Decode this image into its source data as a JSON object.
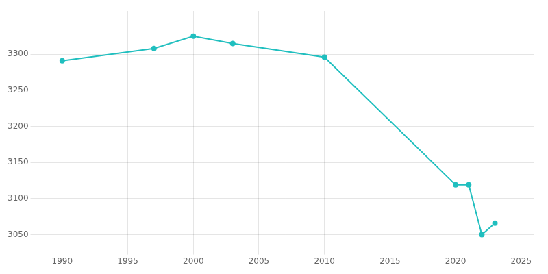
{
  "chart_data": {
    "type": "line",
    "x": [
      1990,
      1997,
      2000,
      2003,
      2010,
      2020,
      2021,
      2022,
      2023
    ],
    "values": [
      3291,
      3308,
      3325,
      3315,
      3296,
      3119,
      3119,
      3050,
      3066
    ],
    "color": "#20BFBF",
    "marker": "circle",
    "xlim": [
      1988,
      2026
    ],
    "ylim": [
      3030,
      3360
    ],
    "xticks": [
      1990,
      1995,
      2000,
      2005,
      2010,
      2015,
      2020,
      2025
    ],
    "yticks": [
      3050,
      3100,
      3150,
      3200,
      3250,
      3300
    ],
    "grid": true
  }
}
